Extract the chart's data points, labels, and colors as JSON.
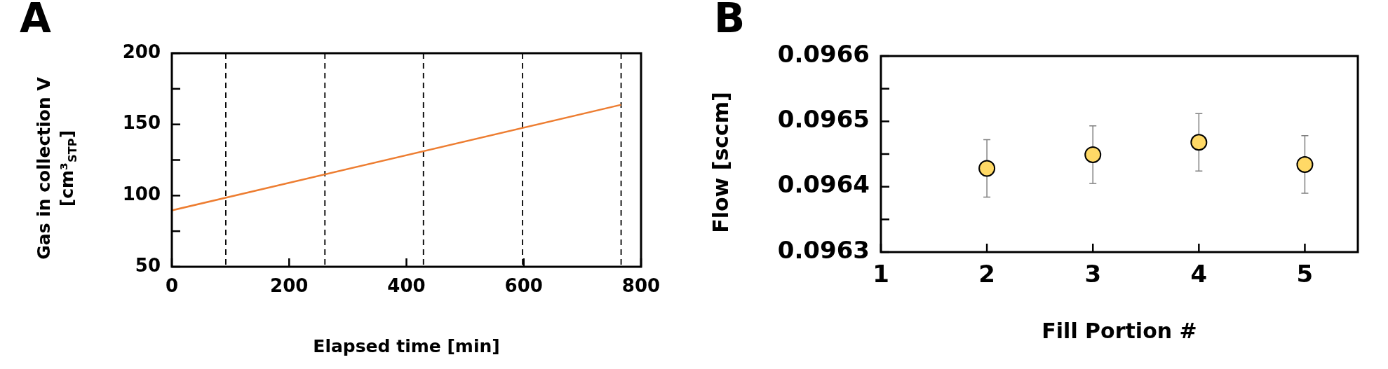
{
  "chart_data": [
    {
      "type": "line",
      "title": "A",
      "xlabel": "Elapsed time [min]",
      "ylabel": "Gas in collection V [cm³$_{STP}$]",
      "x": [
        0,
        766
      ],
      "series": [
        {
          "color": "#ed7d31",
          "values": [
            89.6,
            163.8
          ],
          "line_style": "solid"
        }
      ],
      "xlim": [
        0,
        800
      ],
      "xticks": [
        0,
        200,
        400,
        600,
        800
      ],
      "ylim": [
        50,
        200
      ],
      "yticks": [
        50,
        {
          "value": 75,
          "label": null
        },
        100,
        {
          "value": 125,
          "label": null
        },
        150,
        {
          "value": 175,
          "label": null
        },
        200
      ],
      "ref_lines": [
        {
          "axis": "x",
          "value": 92,
          "color": "#000000",
          "line_style": "dashed"
        },
        {
          "axis": "x",
          "value": 261,
          "color": "#000000",
          "line_style": "dashed"
        },
        {
          "axis": "x",
          "value": 429,
          "color": "#000000",
          "line_style": "dashed"
        },
        {
          "axis": "x",
          "value": 598,
          "color": "#000000",
          "line_style": "dashed"
        },
        {
          "axis": "x",
          "value": 766,
          "color": "#000000",
          "line_style": "dashed"
        }
      ],
      "marker": "none"
    },
    {
      "type": "scatter",
      "title": "B",
      "xlabel": "Fill Portion #",
      "ylabel": "Flow [sccm]",
      "x": [
        2,
        3,
        4,
        5
      ],
      "series": [
        {
          "color": "#ffd966",
          "values": [
            0.096428,
            0.096449,
            0.096468,
            0.096434
          ],
          "errors": [
            4.4e-05,
            4.4e-05,
            4.4e-05,
            4.4e-05
          ]
        }
      ],
      "xlim": [
        1,
        5.5
      ],
      "xticks": [
        1,
        2,
        3,
        4,
        5
      ],
      "ylim": [
        0.0963,
        0.0966
      ],
      "yticks": [
        0.0963,
        {
          "value": 0.09635,
          "label": null
        },
        0.0964,
        {
          "value": 0.09645,
          "label": null
        },
        0.0965,
        {
          "value": 0.09655,
          "label": null
        },
        0.0966
      ],
      "marker": "circle"
    }
  ]
}
